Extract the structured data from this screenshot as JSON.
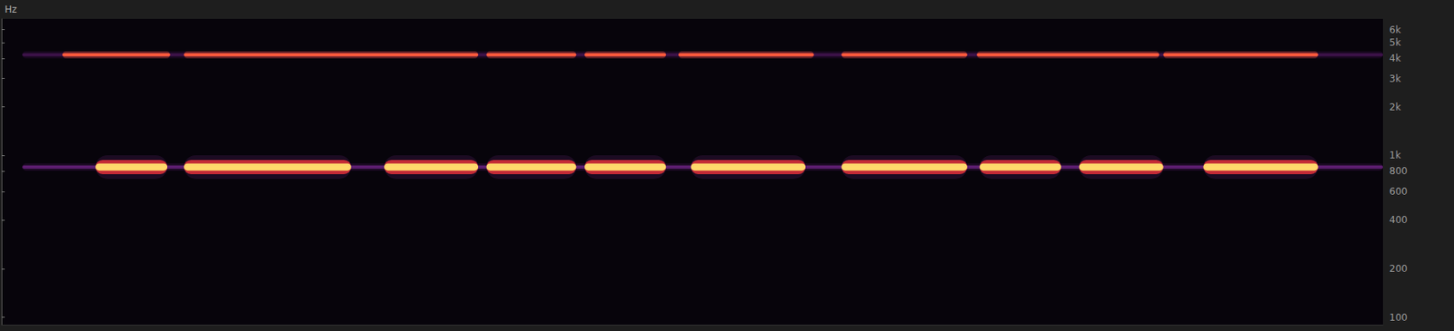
{
  "chart_data": {
    "type": "spectrogram",
    "y_label": "Hz",
    "log": "y",
    "grid": false,
    "tick_labels": "y",
    "xlim": [
      0,
      100
    ],
    "ylim": [
      90,
      7000
    ],
    "yticks": [
      {
        "value": 6000,
        "label": "6k"
      },
      {
        "value": 5000,
        "label": "5k"
      },
      {
        "value": 4000,
        "label": "4k"
      },
      {
        "value": 3000,
        "label": "3k"
      },
      {
        "value": 2000,
        "label": "2k"
      },
      {
        "value": 1000,
        "label": "1k"
      },
      800,
      600,
      400,
      200,
      100
    ],
    "series": [
      {
        "frequency": 850,
        "color": "#5b1d6e",
        "line_style": "thin",
        "segments": [
          [
            1.5,
            100
          ]
        ]
      },
      {
        "frequency": 4200,
        "color": "#3c1248",
        "line_style": "thin",
        "segments": [
          [
            1.5,
            100
          ]
        ]
      },
      {
        "frequency": 4200,
        "color": "#ff5a3c",
        "line_style": "thin",
        "segments": [
          [
            4.4,
            12.2
          ],
          [
            13.2,
            34.5
          ],
          [
            35.1,
            41.6
          ],
          [
            42.2,
            48.1
          ],
          [
            49.0,
            58.8
          ],
          [
            60.8,
            69.9
          ],
          [
            70.6,
            83.8
          ],
          [
            84.1,
            95.3
          ]
        ]
      },
      {
        "frequency": 850,
        "color": "#ffd86b",
        "line_style": "thick",
        "segments": [
          [
            6.8,
            12.0
          ],
          [
            13.2,
            25.3
          ],
          [
            27.7,
            34.5
          ],
          [
            35.1,
            41.6
          ],
          [
            42.2,
            48.1
          ],
          [
            49.9,
            58.2
          ],
          [
            60.8,
            69.9
          ],
          [
            70.8,
            76.7
          ],
          [
            78.0,
            84.1
          ],
          [
            87.0,
            95.3
          ]
        ]
      }
    ]
  }
}
